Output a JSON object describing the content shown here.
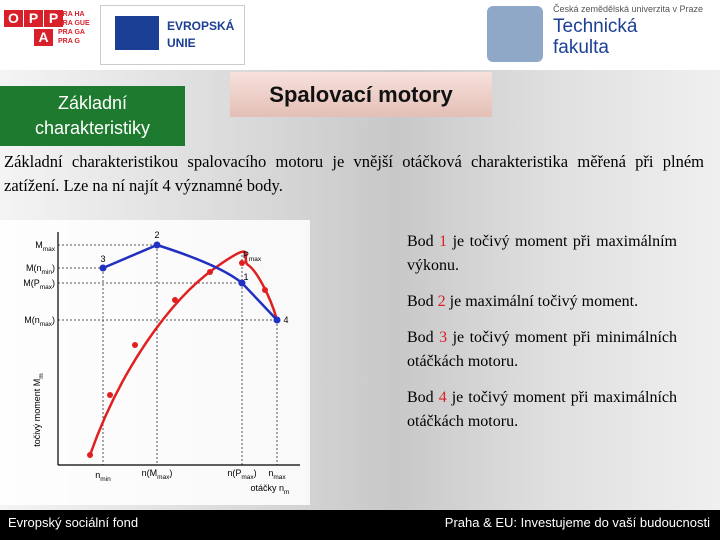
{
  "header": {
    "opp": [
      "O",
      "P",
      "P",
      "A"
    ],
    "city": [
      "PRA HA",
      "PRA GUE",
      "PRA GA",
      "PRA G"
    ],
    "eu": [
      "EVROPSKÁ",
      "UNIE"
    ],
    "university": "Česká zemědělská univerzita v Praze",
    "faculty": [
      "Technická",
      "fakulta"
    ]
  },
  "section_label": [
    "Základní",
    "charakteristiky"
  ],
  "title": "Spalovací motory",
  "intro": "Základní charakteristikou spalovacího motoru je vnější otáčková charakteristika měřená při plném zatížení. Lze na ní najít 4 významné body.",
  "figure": {
    "y_labels": [
      [
        {
          "text": "M"
        },
        {
          "text": "max",
          "sub": true
        }
      ],
      [
        {
          "text": "M(n"
        },
        {
          "text": "min",
          "sub": true
        },
        {
          "text": ")"
        }
      ],
      [
        {
          "text": "M(P"
        },
        {
          "text": "max",
          "sub": true
        },
        {
          "text": ")"
        }
      ],
      [
        {
          "text": "M(n"
        },
        {
          "text": "max",
          "sub": true
        },
        {
          "text": ")"
        }
      ]
    ],
    "x_labels": [
      [
        {
          "text": "n"
        },
        {
          "text": "min",
          "sub": true
        }
      ],
      [
        {
          "text": "n(M"
        },
        {
          "text": "max",
          "sub": true
        },
        {
          "text": ")"
        }
      ],
      [
        {
          "text": "n(P"
        },
        {
          "text": "max",
          "sub": true
        },
        {
          "text": ")"
        }
      ],
      [
        {
          "text": "n"
        },
        {
          "text": "max",
          "sub": true
        }
      ]
    ],
    "y_axis": [
      {
        "text": "točivý moment M"
      },
      {
        "text": "m",
        "sub": true
      }
    ],
    "x_axis": [
      {
        "text": "otáčky n"
      },
      {
        "text": "m",
        "sub": true
      }
    ],
    "points": [
      [
        {
          "text": "1"
        }
      ],
      [
        {
          "text": "2"
        }
      ],
      [
        {
          "text": "3"
        }
      ],
      [
        {
          "text": "4"
        }
      ],
      [
        {
          "text": "P"
        },
        {
          "text": "max",
          "sub": true
        }
      ]
    ]
  },
  "bullets": [
    {
      "word": "Bod",
      "number": "1",
      "text": "je točivý moment při maximálním výkonu."
    },
    {
      "word": "Bod",
      "number": "2",
      "text": "je maximální točivý moment."
    },
    {
      "word": "Bod",
      "number": "3",
      "text": "je točivý moment při minimálních otáčkách motoru."
    },
    {
      "word": "Bod",
      "number": "4",
      "text": "je točivý moment při maximálních otáčkách motoru."
    }
  ],
  "footer": {
    "left": "Evropský sociální fond",
    "right": "Praha & EU: Investujeme do vaší budoucnosti"
  }
}
